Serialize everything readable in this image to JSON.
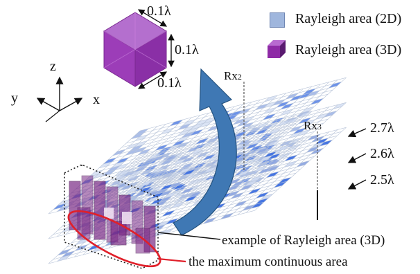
{
  "legend": {
    "items": [
      {
        "label": "Rayleigh area (2D)",
        "color": "#9fb6dd"
      },
      {
        "label": "Rayleigh area (3D)",
        "color": "#8e2aa6"
      }
    ]
  },
  "cube": {
    "dim_width": "0.1λ",
    "dim_height": "0.1λ",
    "dim_depth": "0.1λ",
    "color": "#9c3db8"
  },
  "axes": {
    "z": "z",
    "y": "y",
    "x": "x"
  },
  "receivers": [
    {
      "name": "Rx",
      "index": "2"
    },
    {
      "name": "Rx",
      "index": "3"
    }
  ],
  "planes": [
    "2.7λ",
    "2.6λ",
    "2.5λ"
  ],
  "annotations": {
    "example_3d": "example of Rayleigh area (3D)",
    "max_area": "the maximum continuous area"
  },
  "colors": {
    "grid_line": "#b8c4d8",
    "cell_light": "#cdd9f0",
    "cell_mid": "#8ea7e0",
    "cell_dark": "#3d6fe0",
    "arrow": "#3f78b4",
    "highlight": "#e0202a",
    "volume": "#7a2a86"
  }
}
